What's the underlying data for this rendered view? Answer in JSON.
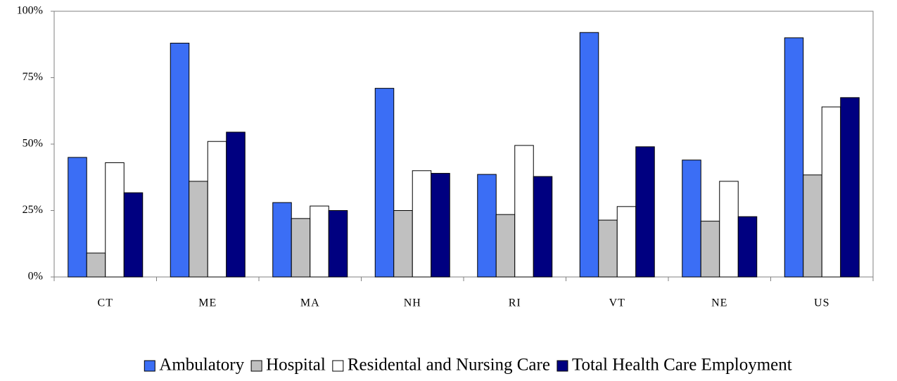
{
  "chart_data": {
    "type": "bar",
    "categories": [
      "CT",
      "ME",
      "MA",
      "NH",
      "RI",
      "VT",
      "NE",
      "US"
    ],
    "series": [
      {
        "name": "Ambulatory",
        "color": "#3b6ef5",
        "values": [
          45,
          88,
          28,
          71,
          38.6,
          92,
          44,
          90
        ]
      },
      {
        "name": "Hospital",
        "color": "#c0c0c0",
        "values": [
          9,
          36,
          22,
          25,
          23.5,
          21.4,
          21,
          38.4
        ]
      },
      {
        "name": "Residental and Nursing Care",
        "color": "#ffffff",
        "values": [
          43,
          51,
          26.7,
          40,
          49.5,
          26.5,
          36,
          64
        ]
      },
      {
        "name": "Total Health Care Employment",
        "color": "#000080",
        "values": [
          31.7,
          54.5,
          25,
          39,
          37.8,
          49,
          22.7,
          67.5
        ]
      }
    ],
    "ylim": [
      0,
      100
    ],
    "yticks": [
      {
        "value": 0,
        "label": "0%"
      },
      {
        "value": 25,
        "label": "25%"
      },
      {
        "value": 50,
        "label": "50%"
      },
      {
        "value": 75,
        "label": "75%"
      },
      {
        "value": 100,
        "label": "100%"
      }
    ],
    "legend": "bottom"
  }
}
